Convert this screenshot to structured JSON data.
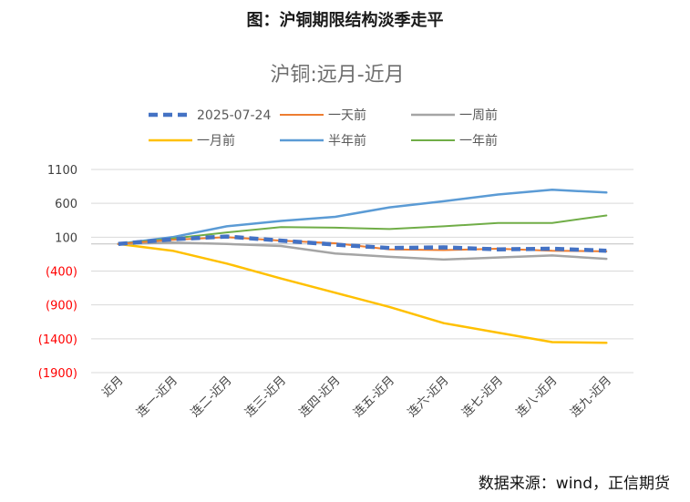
{
  "figure_title": "图：沪铜期限结构淡季走平",
  "source": "数据来源：wind，正信期货",
  "chart_data": {
    "type": "line",
    "title": "沪铜:远月-近月",
    "categories": [
      "近月",
      "连一-近月",
      "连二-近月",
      "连三-近月",
      "连四-近月",
      "连五-近月",
      "连六-近月",
      "连七-近月",
      "连八-近月",
      "连九-近月"
    ],
    "y_tick_labels": [
      "1100",
      "600",
      "100",
      "(400)",
      "(900)",
      "(1400)",
      "(1900)"
    ],
    "ylim": [
      -1900,
      1100
    ],
    "y_ticks": [
      1100,
      600,
      100,
      -400,
      -900,
      -1400,
      -1900
    ],
    "negative_color": "#ff0000",
    "positive_color": "#404040",
    "series": [
      {
        "name": "2025-07-24",
        "color": "#4472c4",
        "style": "dashed",
        "width": 4.5,
        "values": [
          0,
          70,
          110,
          50,
          -10,
          -60,
          -50,
          -80,
          -70,
          -100
        ]
      },
      {
        "name": "一天前",
        "color": "#ed7d31",
        "style": "solid",
        "width": 2,
        "values": [
          0,
          60,
          100,
          50,
          10,
          -80,
          -90,
          -70,
          -100,
          -110
        ]
      },
      {
        "name": "一周前",
        "color": "#a5a5a5",
        "style": "solid",
        "width": 2.5,
        "values": [
          0,
          20,
          0,
          -30,
          -140,
          -190,
          -230,
          -200,
          -170,
          -220
        ]
      },
      {
        "name": "一月前",
        "color": "#ffc000",
        "style": "solid",
        "width": 2.5,
        "values": [
          0,
          -100,
          -290,
          -510,
          -720,
          -930,
          -1170,
          -1310,
          -1450,
          -1460
        ]
      },
      {
        "name": "半年前",
        "color": "#5b9bd5",
        "style": "solid",
        "width": 2.5,
        "values": [
          0,
          100,
          260,
          340,
          400,
          540,
          630,
          730,
          800,
          760
        ]
      },
      {
        "name": "一年前",
        "color": "#70ad47",
        "style": "solid",
        "width": 2,
        "values": [
          0,
          80,
          170,
          250,
          240,
          220,
          260,
          310,
          310,
          420
        ]
      }
    ],
    "legend_position": "top",
    "grid": "horizontal"
  }
}
